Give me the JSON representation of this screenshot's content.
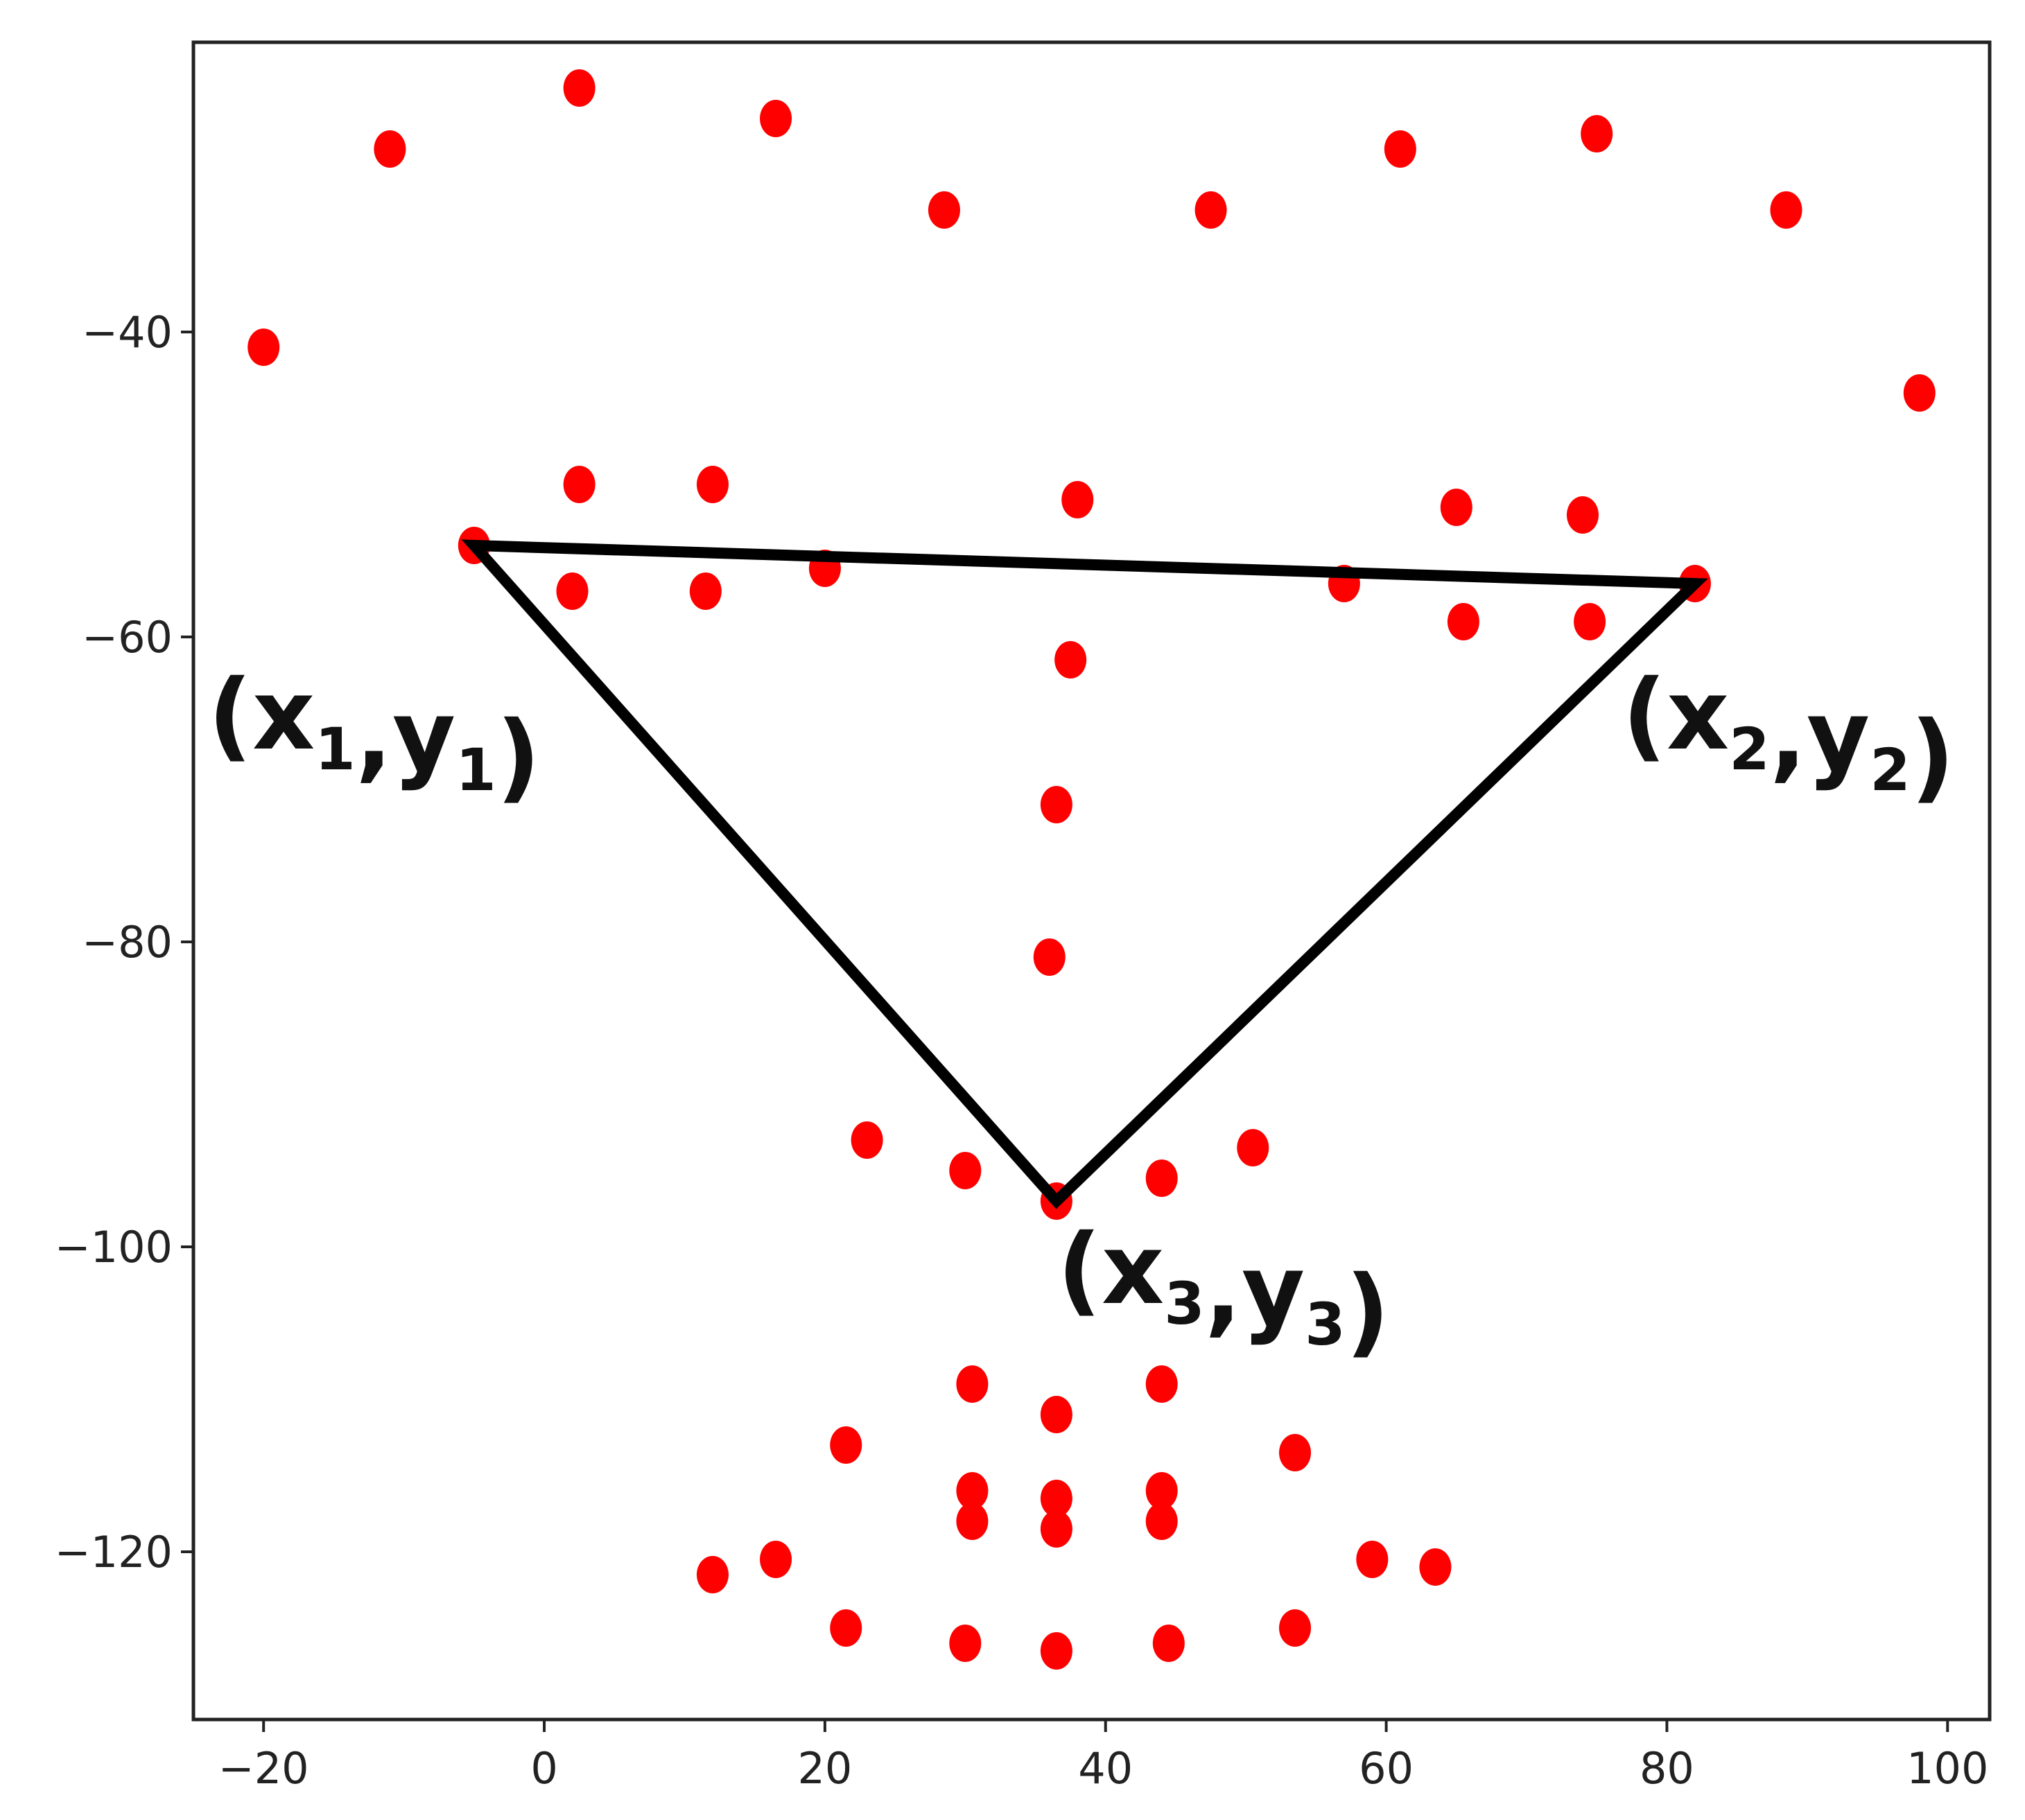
{
  "chart_data": {
    "type": "scatter",
    "title": "",
    "xlabel": "",
    "ylabel": "",
    "xlim": [
      -25,
      103
    ],
    "ylim": [
      -131,
      -21
    ],
    "x_ticks": [
      -20,
      0,
      20,
      40,
      60,
      80,
      100
    ],
    "y_ticks": [
      -40,
      -60,
      -80,
      -100,
      -120
    ],
    "x_tick_labels": [
      "−20",
      "0",
      "20",
      "40",
      "60",
      "80",
      "100"
    ],
    "y_tick_labels": [
      "−40",
      "−60",
      "−80",
      "−100",
      "−120"
    ],
    "grid": false,
    "series": [
      {
        "color": "#ff0000",
        "points": [
          [
            2.5,
            -24
          ],
          [
            -11,
            -28
          ],
          [
            16.5,
            -26
          ],
          [
            28.5,
            -32
          ],
          [
            47.5,
            -32
          ],
          [
            61,
            -28
          ],
          [
            75,
            -27
          ],
          [
            88.5,
            -32
          ],
          [
            -20,
            -41
          ],
          [
            98,
            -44
          ],
          [
            2.5,
            -50
          ],
          [
            12,
            -50
          ],
          [
            38,
            -51
          ],
          [
            65,
            -51.5
          ],
          [
            74,
            -52
          ],
          [
            -5,
            -54
          ],
          [
            20,
            -55.5
          ],
          [
            2,
            -57
          ],
          [
            11.5,
            -57
          ],
          [
            57,
            -56.5
          ],
          [
            82,
            -56.5
          ],
          [
            65.5,
            -59
          ],
          [
            74.5,
            -59
          ],
          [
            37.5,
            -61.5
          ],
          [
            36.5,
            -71
          ],
          [
            36,
            -81
          ],
          [
            23,
            -93
          ],
          [
            30,
            -95
          ],
          [
            36.5,
            -97
          ],
          [
            44,
            -95.5
          ],
          [
            50.5,
            -93.5
          ],
          [
            30.5,
            -109
          ],
          [
            44,
            -109
          ],
          [
            36.5,
            -111
          ],
          [
            21.5,
            -113
          ],
          [
            53.5,
            -113.5
          ],
          [
            30.5,
            -116
          ],
          [
            36.5,
            -116.5
          ],
          [
            44,
            -116
          ],
          [
            30.5,
            -118
          ],
          [
            36.5,
            -118.5
          ],
          [
            44,
            -118
          ],
          [
            12,
            -121.5
          ],
          [
            16.5,
            -120.5
          ],
          [
            59,
            -120.5
          ],
          [
            63.5,
            -121
          ],
          [
            21.5,
            -125
          ],
          [
            30,
            -126
          ],
          [
            36.5,
            -126.5
          ],
          [
            44.5,
            -126
          ],
          [
            53.5,
            -125
          ]
        ]
      }
    ],
    "annotations": {
      "triangle": {
        "color": "#000000",
        "vertices": [
          [
            -5,
            -54
          ],
          [
            82,
            -56.5
          ],
          [
            36.5,
            -97
          ]
        ]
      },
      "labels": [
        {
          "id": "v1",
          "main": "(x",
          "sub": "1",
          "mid": ",y",
          "sub2": "1",
          "end": ")"
        },
        {
          "id": "v2",
          "main": "(x",
          "sub": "2",
          "mid": ",y",
          "sub2": "2",
          "end": ")"
        },
        {
          "id": "v3",
          "main": "(x",
          "sub": "3",
          "mid": ",y",
          "sub2": "3",
          "end": ")"
        }
      ]
    }
  }
}
